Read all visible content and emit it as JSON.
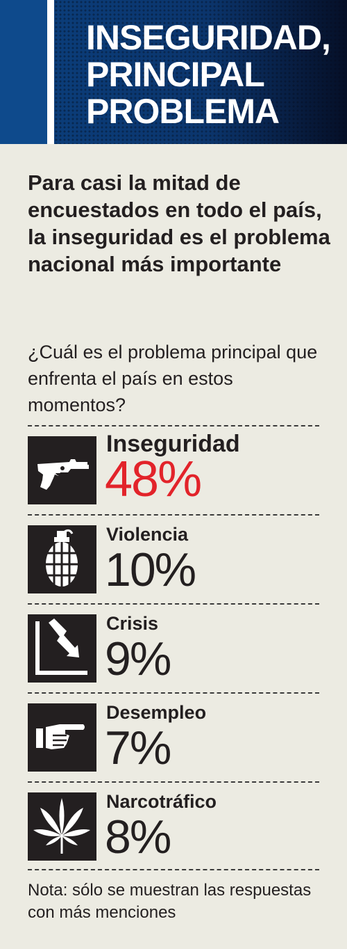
{
  "header": {
    "title_lines": [
      "INSEGURIDAD,",
      "PRINCIPAL",
      "PROBLEMA"
    ],
    "colors": {
      "band": "#0b3f7d",
      "text": "#ffffff"
    }
  },
  "subtitle": "Para casi la mitad de encuestados en todo el país, la inseguridad es el problema nacional más importante",
  "question": "¿Cuál es el problema principal que enfrenta el país en estos momentos?",
  "note": "Nota: sólo se muestran las respuestas  con más menciones",
  "chart_data": {
    "type": "table",
    "title": "INSEGURIDAD, PRINCIPAL PROBLEMA",
    "categories": [
      "Inseguridad",
      "Violencia",
      "Crisis",
      "Desempleo",
      "Narcotráfico"
    ],
    "values": [
      48,
      10,
      9,
      7,
      8
    ],
    "value_labels": [
      "48%",
      "10%",
      "9%",
      "7%",
      "8%"
    ],
    "icons": [
      "revolver-icon",
      "grenade-icon",
      "falling-arrow-icon",
      "pointing-hand-icon",
      "cannabis-leaf-icon"
    ],
    "highlight_color": "#e2232a",
    "text_color": "#231f20"
  }
}
